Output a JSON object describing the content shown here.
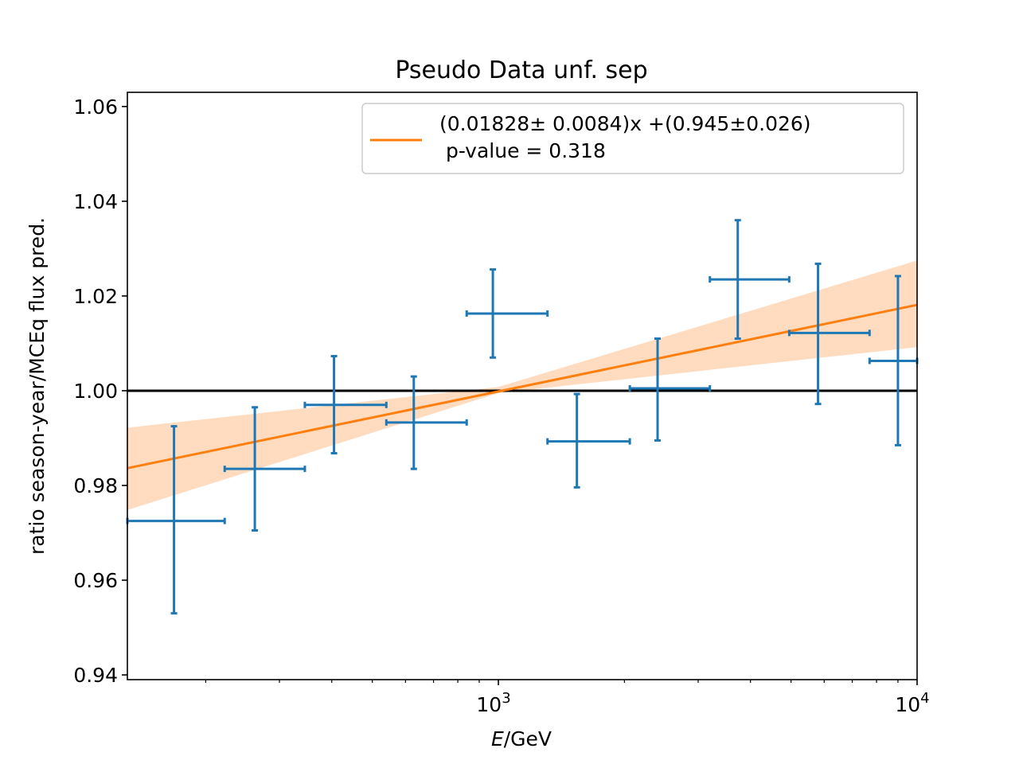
{
  "chart_data": {
    "type": "scatter",
    "title": "Pseudo Data unf. sep",
    "xlabel_italic": "E",
    "xlabel_rest": "/GeV",
    "ylabel": "ratio season-year/MCEq flux pred.",
    "xscale": "log",
    "xlim": [
      130,
      10000
    ],
    "ylim": [
      0.939,
      1.063
    ],
    "yticks": [
      0.94,
      0.96,
      0.98,
      1.0,
      1.02,
      1.04,
      1.06
    ],
    "ytick_labels": [
      "0.94",
      "0.96",
      "0.98",
      "1.00",
      "1.02",
      "1.04",
      "1.06"
    ],
    "xticks_major": [
      1000,
      10000
    ],
    "xtick_base": "10",
    "xtick_exponents": [
      "3",
      "4"
    ],
    "xticks_minor": [
      200,
      300,
      400,
      500,
      600,
      700,
      800,
      900,
      2000,
      3000,
      4000,
      5000,
      6000,
      7000,
      8000,
      9000
    ],
    "reference_line": {
      "y": 1.0,
      "color": "#000000"
    },
    "series": [
      {
        "kind": "errorbar",
        "color": "#1f77b4",
        "points": [
          {
            "x": 168,
            "xlo": 130,
            "xhi": 222,
            "y": 0.9725,
            "ylo": 0.953,
            "yhi": 0.9925
          },
          {
            "x": 262,
            "xlo": 222,
            "xhi": 345,
            "y": 0.9835,
            "ylo": 0.9705,
            "yhi": 0.9965
          },
          {
            "x": 405,
            "xlo": 345,
            "xhi": 540,
            "y": 0.997,
            "ylo": 0.9868,
            "yhi": 1.0073
          },
          {
            "x": 628,
            "xlo": 540,
            "xhi": 840,
            "y": 0.9933,
            "ylo": 0.9835,
            "yhi": 1.003
          },
          {
            "x": 970,
            "xlo": 840,
            "xhi": 1310,
            "y": 1.0163,
            "ylo": 1.007,
            "yhi": 1.0256
          },
          {
            "x": 1540,
            "xlo": 1310,
            "xhi": 2060,
            "y": 0.9893,
            "ylo": 0.9796,
            "yhi": 0.9993
          },
          {
            "x": 2400,
            "xlo": 2060,
            "xhi": 3200,
            "y": 1.0005,
            "ylo": 0.9895,
            "yhi": 1.011
          },
          {
            "x": 3730,
            "xlo": 3200,
            "xhi": 4950,
            "y": 1.0235,
            "ylo": 1.011,
            "yhi": 1.036
          },
          {
            "x": 5800,
            "xlo": 4950,
            "xhi": 7700,
            "y": 1.0122,
            "ylo": 0.9972,
            "yhi": 1.0268
          },
          {
            "x": 9000,
            "xlo": 7700,
            "xhi": 10000,
            "y": 1.0063,
            "ylo": 0.9885,
            "yhi": 1.0242
          }
        ]
      },
      {
        "name": "(0.01828± 0.0084)x +(0.945±0.026)",
        "name_line2": " p-value = 0.318",
        "kind": "fit-line",
        "color": "#ff7f0e",
        "slope": 0.01828,
        "intercept": 0.945,
        "band_color": "#ffdcc0",
        "band_lower": [
          {
            "x": 130,
            "y": 0.9748
          },
          {
            "x": 1000,
            "y": 0.9995
          },
          {
            "x": 10000,
            "y": 1.0092
          }
        ],
        "band_upper": [
          {
            "x": 130,
            "y": 0.9922
          },
          {
            "x": 1000,
            "y": 1.0008
          },
          {
            "x": 10000,
            "y": 1.0275
          }
        ]
      }
    ],
    "legend_position": "upper right"
  }
}
